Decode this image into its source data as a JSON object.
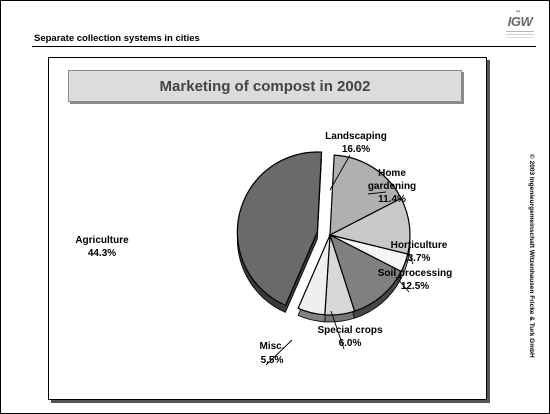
{
  "slide": {
    "title": "Separate collection systems in cities",
    "logo_text": "IGW",
    "copyright": "© 2003 Ingenieurgemeinschaft Witzenhausen Fricke & Turk GmbH"
  },
  "chart_data": {
    "type": "pie",
    "title": "Marketing of compost in 2002",
    "legend": "none",
    "slices": [
      {
        "label": "Landscaping",
        "value": 16.6,
        "value_label": "16.6%",
        "color": "#b0b0b0"
      },
      {
        "label": "Home gardening",
        "value": 11.4,
        "value_label": "11.4%",
        "color": "#c8c8c8"
      },
      {
        "label": "Horticulture",
        "value": 3.7,
        "value_label": "3.7%",
        "color": "#f5f5f5"
      },
      {
        "label": "Soil processing",
        "value": 12.5,
        "value_label": "12.5%",
        "color": "#808080"
      },
      {
        "label": "Special crops",
        "value": 6.0,
        "value_label": "6.0%",
        "color": "#d8d8d8"
      },
      {
        "label": "Misc.",
        "value": 5.5,
        "value_label": "5.5%",
        "color": "#efefef"
      },
      {
        "label": "Agriculture",
        "value": 44.3,
        "value_label": "44.3%",
        "color": "#6a6a6a",
        "exploded": true
      }
    ]
  }
}
